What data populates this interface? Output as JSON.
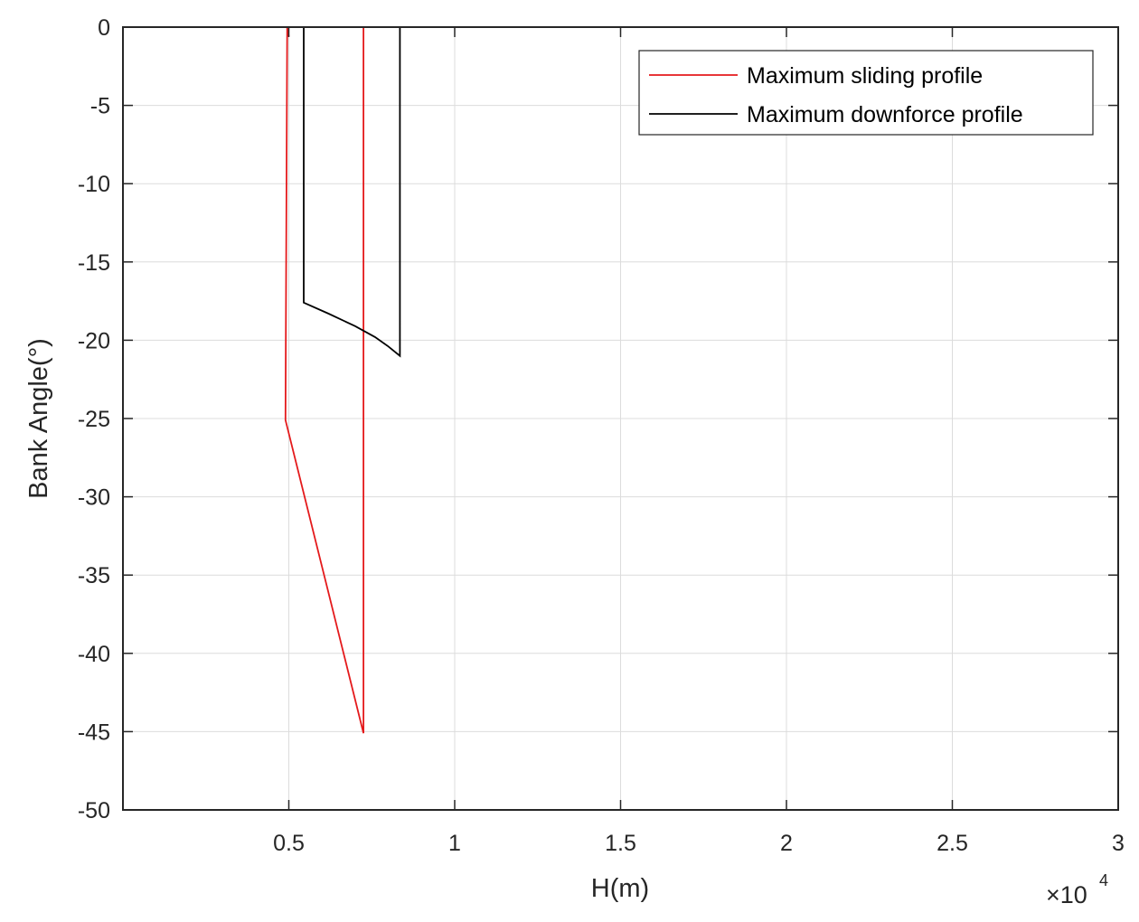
{
  "chart_data": {
    "type": "line",
    "xlabel": "H(m)",
    "ylabel": "Bank Angle(°)",
    "x_exponent_base": "×10",
    "x_exponent_power": "4",
    "xlim": [
      0,
      30000
    ],
    "ylim": [
      -50,
      0
    ],
    "x_ticks": [
      5000,
      10000,
      15000,
      20000,
      25000,
      30000
    ],
    "x_tick_labels": [
      "0.5",
      "1",
      "1.5",
      "2",
      "2.5",
      "3"
    ],
    "y_ticks": [
      0,
      -5,
      -10,
      -15,
      -20,
      -25,
      -30,
      -35,
      -40,
      -45,
      -50
    ],
    "y_tick_labels": [
      "0",
      "-5",
      "-10",
      "-15",
      "-20",
      "-25",
      "-30",
      "-35",
      "-40",
      "-45",
      "-50"
    ],
    "grid": true,
    "legend_position": "top-right",
    "series": [
      {
        "name": "Maximum sliding profile",
        "color": "#e41a1c",
        "points": [
          [
            5000,
            -0.6
          ],
          [
            4950,
            0
          ],
          [
            4900,
            -25.1
          ],
          [
            7250,
            -45.1
          ],
          [
            7250,
            0
          ],
          [
            8300,
            0
          ]
        ]
      },
      {
        "name": "Maximum downforce profile",
        "color": "#000000",
        "points": [
          [
            5450,
            0
          ],
          [
            5450,
            -17.6
          ],
          [
            6200,
            -18.3
          ],
          [
            7000,
            -19.1
          ],
          [
            7600,
            -19.8
          ],
          [
            8000,
            -20.4
          ],
          [
            8350,
            -21.0
          ],
          [
            8350,
            0
          ]
        ]
      }
    ]
  }
}
